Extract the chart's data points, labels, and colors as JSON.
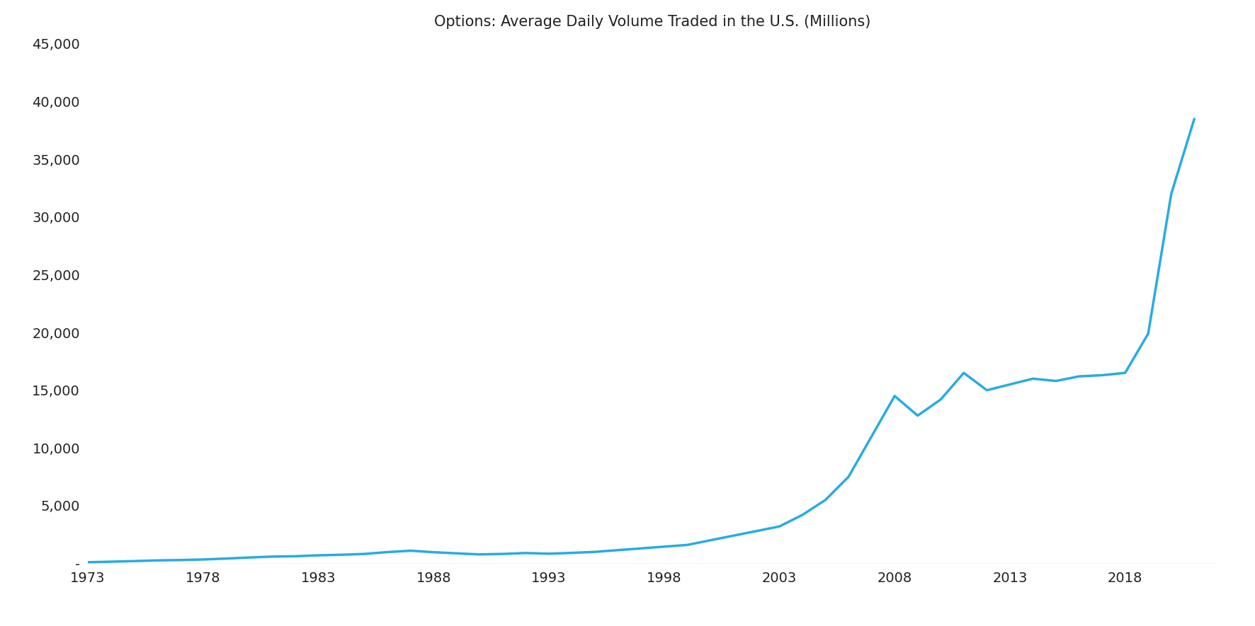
{
  "title": "Options: Average Daily Volume Traded in the U.S. (Millions)",
  "line_color": "#29ABE2",
  "background_color": "#ffffff",
  "years": [
    1973,
    1974,
    1975,
    1976,
    1977,
    1978,
    1979,
    1980,
    1981,
    1982,
    1983,
    1984,
    1985,
    1986,
    1987,
    1988,
    1989,
    1990,
    1991,
    1992,
    1993,
    1994,
    1995,
    1996,
    1997,
    1998,
    1999,
    2000,
    2001,
    2002,
    2003,
    2004,
    2005,
    2006,
    2007,
    2008,
    2009,
    2010,
    2011,
    2012,
    2013,
    2014,
    2015,
    2016,
    2017,
    2018,
    2019,
    2020,
    2021
  ],
  "values": [
    100,
    150,
    200,
    260,
    290,
    340,
    420,
    510,
    590,
    620,
    700,
    750,
    820,
    980,
    1100,
    970,
    870,
    780,
    820,
    900,
    840,
    910,
    1000,
    1150,
    1300,
    1450,
    1600,
    2000,
    2400,
    2800,
    3200,
    4200,
    5500,
    7500,
    11000,
    14500,
    12800,
    14200,
    16500,
    15000,
    15500,
    16000,
    15800,
    16200,
    16300,
    16500,
    19900,
    32000,
    38500
  ],
  "xlim": [
    1973,
    2022
  ],
  "ylim": [
    0,
    45000
  ],
  "xticks": [
    1973,
    1978,
    1983,
    1988,
    1993,
    1998,
    2003,
    2008,
    2013,
    2018
  ],
  "yticks": [
    0,
    5000,
    10000,
    15000,
    20000,
    25000,
    30000,
    35000,
    40000,
    45000
  ],
  "ytick_labels": [
    "-",
    "5,000",
    "10,000",
    "15,000",
    "20,000",
    "25,000",
    "30,000",
    "35,000",
    "40,000",
    "45,000"
  ],
  "line_width": 2.5,
  "title_fontsize": 15,
  "tick_fontsize": 14,
  "tick_color": "#222222",
  "axis_color": "#cccccc",
  "bottom_line_color": "#cccccc"
}
